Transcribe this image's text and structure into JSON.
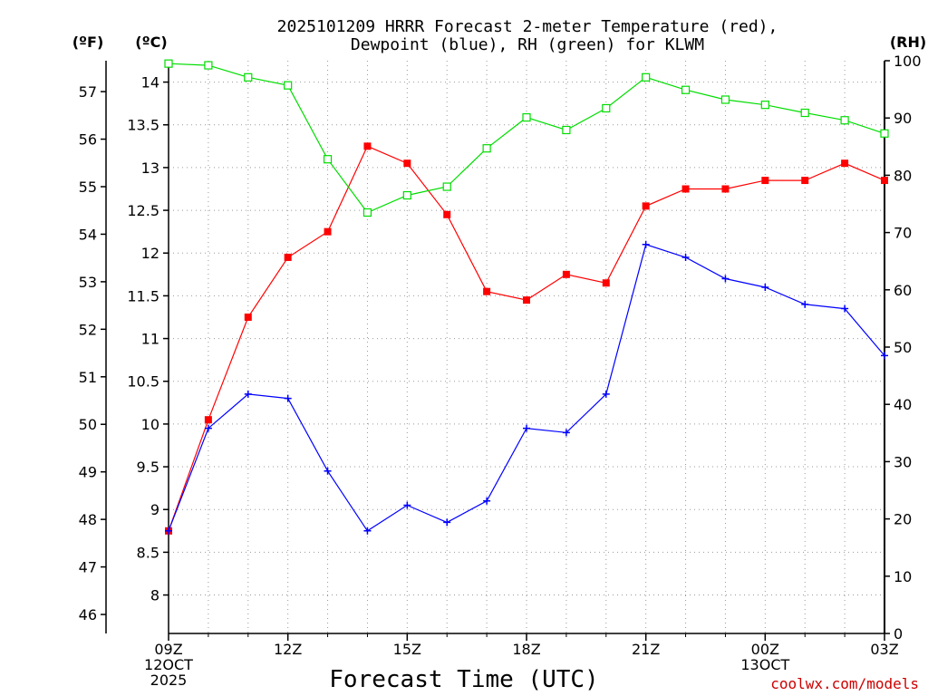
{
  "chart_data": {
    "type": "line",
    "title_line1": "2025101209 HRRR Forecast 2-meter Temperature (red),",
    "title_line2": "Dewpoint (blue), RH (green) for KLWM",
    "xlabel": "Forecast Time (UTC)",
    "credit": "coolwx.com/models",
    "units": {
      "fahrenheit": "(ºF)",
      "celsius": "(ºC)",
      "rh": "(RH)"
    },
    "hours": [
      9,
      10,
      11,
      12,
      13,
      14,
      15,
      16,
      17,
      18,
      19,
      20,
      21,
      22,
      23,
      24,
      25,
      26,
      27
    ],
    "xlim": [
      9,
      27
    ],
    "x_ticks": [
      {
        "hour": 9,
        "lines": [
          "09Z",
          "12OCT",
          "2025"
        ]
      },
      {
        "hour": 12,
        "lines": [
          "12Z"
        ]
      },
      {
        "hour": 15,
        "lines": [
          "15Z"
        ]
      },
      {
        "hour": 18,
        "lines": [
          "18Z"
        ]
      },
      {
        "hour": 21,
        "lines": [
          "21Z"
        ]
      },
      {
        "hour": 24,
        "lines": [
          "00Z",
          "13OCT"
        ]
      },
      {
        "hour": 27,
        "lines": [
          "03Z"
        ]
      }
    ],
    "celsius_axis": {
      "min": 7.55,
      "max": 14.25,
      "ticks": [
        "8",
        "8.5",
        "9",
        "9.5",
        "10",
        "10.5",
        "11",
        "11.5",
        "12",
        "12.5",
        "13",
        "13.5",
        "14"
      ]
    },
    "fahrenheit_axis": {
      "min": 45.6,
      "max": 57.65,
      "ticks": [
        "46",
        "47",
        "48",
        "49",
        "50",
        "51",
        "52",
        "53",
        "54",
        "55",
        "56",
        "57"
      ]
    },
    "rh_axis": {
      "min": 0,
      "max": 100,
      "ticks": [
        "0",
        "10",
        "20",
        "30",
        "40",
        "50",
        "60",
        "70",
        "80",
        "90",
        "100"
      ]
    },
    "grid": true,
    "series": [
      {
        "name": "2-meter Temperature",
        "axis": "celsius",
        "color": "#ff0000",
        "marker": "filled-square",
        "values": [
          8.75,
          10.05,
          11.25,
          11.95,
          12.25,
          13.25,
          13.05,
          12.45,
          11.55,
          11.45,
          11.75,
          11.65,
          12.55,
          12.75,
          12.75,
          12.85,
          12.85,
          13.05,
          12.85
        ]
      },
      {
        "name": "Dewpoint",
        "axis": "celsius",
        "color": "#0000ff",
        "marker": "plus",
        "values": [
          8.75,
          9.95,
          10.35,
          10.3,
          9.45,
          8.75,
          9.05,
          8.85,
          9.1,
          9.95,
          9.9,
          10.35,
          12.1,
          11.95,
          11.7,
          11.6,
          11.4,
          11.35,
          10.8
        ]
      },
      {
        "name": "RH",
        "axis": "rh",
        "color": "#00dd00",
        "marker": "open-square",
        "values": [
          99.5,
          99.2,
          97.1,
          95.7,
          82.8,
          73.5,
          76.5,
          78.0,
          84.7,
          90.1,
          87.9,
          91.7,
          97.1,
          94.9,
          93.2,
          92.3,
          90.9,
          89.6,
          87.3
        ]
      }
    ]
  }
}
